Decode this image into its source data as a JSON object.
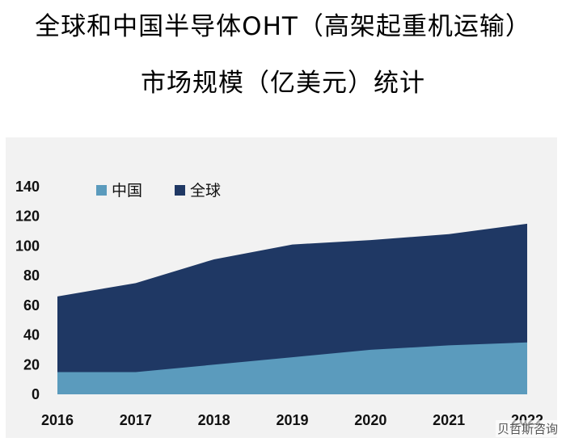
{
  "title": {
    "line1": "全球和中国半导体OHT（高架起重机运输）",
    "line2": "市场规模（亿美元）统计"
  },
  "watermark": "贝哲斯咨询",
  "chart_data": {
    "type": "area",
    "title": "全球和中国半导体OHT（高架起重机运输）市场规模（亿美元）统计",
    "x": [
      "2016",
      "2017",
      "2018",
      "2019",
      "2020",
      "2021",
      "2022"
    ],
    "ylim": [
      0,
      140
    ],
    "yticks": [
      0,
      20,
      40,
      60,
      80,
      100,
      120,
      140
    ],
    "grid": false,
    "legend_position": "top-left",
    "series": [
      {
        "name": "全球",
        "color": "#1f3864",
        "values": [
          66,
          75,
          91,
          101,
          104,
          108,
          115
        ]
      },
      {
        "name": "中国",
        "color": "#5b9bbd",
        "values": [
          15,
          15,
          20,
          25,
          30,
          33,
          35
        ]
      }
    ]
  }
}
